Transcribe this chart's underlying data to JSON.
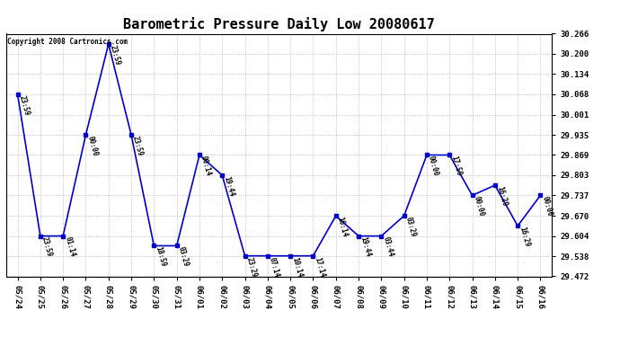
{
  "title": "Barometric Pressure Daily Low 20080617",
  "copyright": "Copyright 2008 Cartronics.com",
  "x_labels": [
    "05/24",
    "05/25",
    "05/26",
    "05/27",
    "05/28",
    "05/29",
    "05/30",
    "05/31",
    "06/01",
    "06/02",
    "06/03",
    "06/04",
    "06/05",
    "06/06",
    "06/07",
    "06/08",
    "06/09",
    "06/10",
    "06/11",
    "06/12",
    "06/13",
    "06/14",
    "06/15",
    "06/16"
  ],
  "y_values": [
    30.068,
    29.604,
    29.604,
    29.935,
    30.232,
    29.935,
    29.572,
    29.572,
    29.869,
    29.803,
    29.539,
    29.539,
    29.539,
    29.539,
    29.67,
    29.604,
    29.604,
    29.67,
    29.869,
    29.869,
    29.737,
    29.77,
    29.637,
    29.737
  ],
  "time_labels": [
    "23:59",
    "23:59",
    "01:14",
    "00:00",
    "23:59",
    "23:59",
    "18:59",
    "03:29",
    "00:14",
    "19:44",
    "23:29",
    "07:14",
    "10:14",
    "17:14",
    "16:14",
    "19:44",
    "03:44",
    "03:29",
    "00:00",
    "17:59",
    "00:00",
    "16:29",
    "16:29",
    "00:00"
  ],
  "ylim_min": 29.472,
  "ylim_max": 30.266,
  "yticks": [
    29.472,
    29.538,
    29.604,
    29.67,
    29.737,
    29.803,
    29.869,
    29.935,
    30.001,
    30.068,
    30.134,
    30.2,
    30.266
  ],
  "line_color": "#0000CC",
  "marker_color": "#0000CC",
  "bg_color": "#FFFFFF",
  "grid_color": "#AAAAAA",
  "title_fontsize": 11,
  "tick_fontsize": 6.5,
  "annotation_fontsize": 5.5,
  "copyright_fontsize": 5.5
}
